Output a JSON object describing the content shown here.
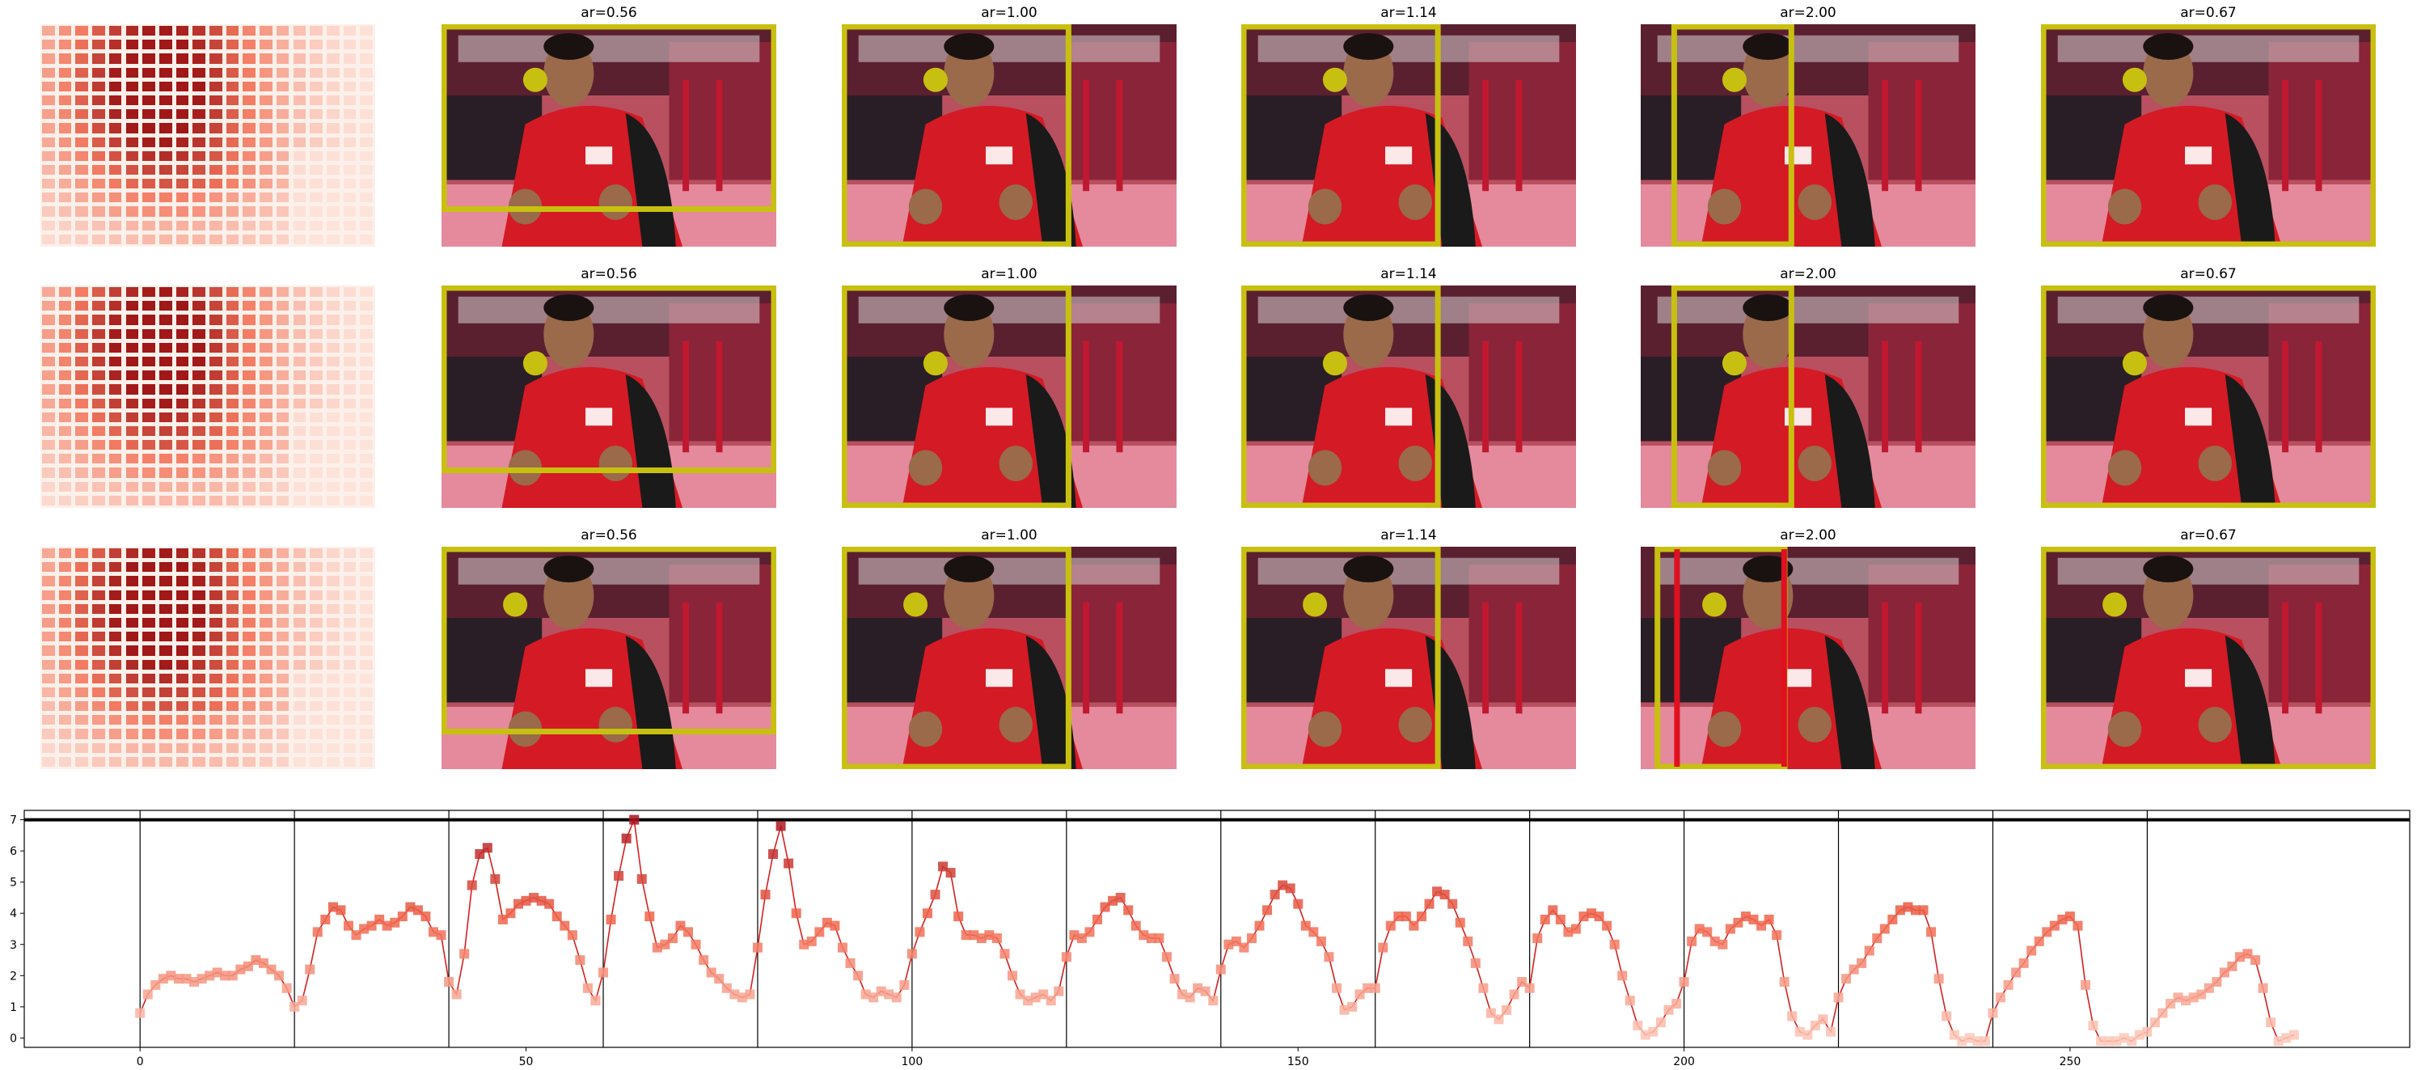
{
  "panels": {
    "rows": [
      {
        "row": 1,
        "cells": [
          {
            "label": "ar=0.56",
            "crop_aspect": 0.56
          },
          {
            "label": "ar=1.00",
            "crop_aspect": 1.0
          },
          {
            "label": "ar=1.14",
            "crop_aspect": 1.14
          },
          {
            "label": "ar=2.00",
            "crop_aspect": 2.0
          },
          {
            "label": "ar=0.67",
            "crop_aspect": 0.67
          }
        ]
      },
      {
        "row": 2,
        "cells": [
          {
            "label": "ar=0.56",
            "crop_aspect": 0.56
          },
          {
            "label": "ar=1.00",
            "crop_aspect": 1.0
          },
          {
            "label": "ar=1.14",
            "crop_aspect": 1.14
          },
          {
            "label": "ar=2.00",
            "crop_aspect": 2.0
          },
          {
            "label": "ar=0.67",
            "crop_aspect": 0.67
          }
        ]
      },
      {
        "row": 3,
        "cells": [
          {
            "label": "ar=0.56",
            "crop_aspect": 0.56
          },
          {
            "label": "ar=1.00",
            "crop_aspect": 1.0
          },
          {
            "label": "ar=1.14",
            "crop_aspect": 1.14
          },
          {
            "label": "ar=2.00",
            "crop_aspect": 2.0
          },
          {
            "label": "ar=0.67",
            "crop_aspect": 0.67
          }
        ]
      }
    ],
    "colors": {
      "crop_box": "#c8c010",
      "focus_dot": "#c8c010",
      "alt_box": "#e01020",
      "heat_low": "#fde5dc",
      "heat_high": "#a01818"
    }
  },
  "chart_data": {
    "type": "line",
    "title": "",
    "xlabel": "",
    "ylabel": "",
    "xlim": [
      -15,
      294
    ],
    "ylim": [
      -0.3,
      7.3
    ],
    "xticks": [
      "0",
      "50",
      "100",
      "150",
      "200",
      "250"
    ],
    "yticks": [
      "0",
      "1",
      "2",
      "3",
      "4",
      "5",
      "6",
      "7"
    ],
    "threshold": 7.0,
    "segment_boundaries": [
      0,
      20,
      40,
      60,
      80,
      100,
      120,
      140,
      160,
      180,
      200,
      220,
      240,
      260
    ],
    "line_color": "#d62020",
    "grid": false,
    "series": [
      {
        "values": [
          0.8,
          1.4,
          1.7,
          1.9,
          2.0,
          1.9,
          1.9,
          1.8,
          1.9,
          2.0,
          2.1,
          2.0,
          2.0,
          2.2,
          2.3,
          2.5,
          2.4,
          2.2,
          2.0,
          1.6,
          1.0,
          1.2,
          2.2,
          3.4,
          3.8,
          4.2,
          4.1,
          3.6,
          3.3,
          3.5,
          3.6,
          3.8,
          3.6,
          3.7,
          3.9,
          4.2,
          4.1,
          3.9,
          3.4,
          3.3,
          1.8,
          1.4,
          2.7,
          4.9,
          5.9,
          6.1,
          5.1,
          3.8,
          4.0,
          4.3,
          4.4,
          4.5,
          4.4,
          4.3,
          3.9,
          3.6,
          3.3,
          2.5,
          1.6,
          1.2,
          2.1,
          3.8,
          5.2,
          6.4,
          7.0,
          5.1,
          3.9,
          2.9,
          3.0,
          3.2,
          3.6,
          3.4,
          3.0,
          2.5,
          2.1,
          1.9,
          1.6,
          1.4,
          1.3,
          1.4,
          2.9,
          4.6,
          5.9,
          6.8,
          5.6,
          4.0,
          3.0,
          3.1,
          3.4,
          3.7,
          3.6,
          2.9,
          2.4,
          2.0,
          1.4,
          1.3,
          1.5,
          1.4,
          1.3,
          1.7,
          2.7,
          3.4,
          4.0,
          4.6,
          5.5,
          5.3,
          3.9,
          3.3,
          3.3,
          3.2,
          3.3,
          3.2,
          2.7,
          2.0,
          1.4,
          1.2,
          1.3,
          1.4,
          1.2,
          1.5,
          2.6,
          3.3,
          3.2,
          3.4,
          3.8,
          4.2,
          4.4,
          4.5,
          4.1,
          3.6,
          3.3,
          3.2,
          3.2,
          2.6,
          1.9,
          1.4,
          1.3,
          1.6,
          1.5,
          1.2,
          2.2,
          3.0,
          3.1,
          2.9,
          3.2,
          3.6,
          4.1,
          4.6,
          4.9,
          4.8,
          4.3,
          3.6,
          3.4,
          3.1,
          2.6,
          1.6,
          0.9,
          1.0,
          1.4,
          1.6,
          1.6,
          2.9,
          3.6,
          3.9,
          3.9,
          3.6,
          3.9,
          4.3,
          4.7,
          4.6,
          4.3,
          3.7,
          3.1,
          2.4,
          1.6,
          0.8,
          0.6,
          0.9,
          1.4,
          1.8,
          1.6,
          3.2,
          3.8,
          4.1,
          3.8,
          3.4,
          3.5,
          3.9,
          4.0,
          3.9,
          3.6,
          3.0,
          2.0,
          1.2,
          0.4,
          0.1,
          0.2,
          0.5,
          0.9,
          1.1,
          1.8,
          3.1,
          3.5,
          3.4,
          3.1,
          3.0,
          3.5,
          3.7,
          3.9,
          3.8,
          3.6,
          3.8,
          3.3,
          1.8,
          0.7,
          0.2,
          0.1,
          0.4,
          0.6,
          0.2,
          1.3,
          1.9,
          2.2,
          2.4,
          2.8,
          3.2,
          3.5,
          3.8,
          4.1,
          4.2,
          4.1,
          4.1,
          3.4,
          1.9,
          0.7,
          0.1,
          -0.1,
          0.0,
          -0.1,
          -0.1,
          0.8,
          1.3,
          1.7,
          2.1,
          2.4,
          2.8,
          3.1,
          3.4,
          3.6,
          3.8,
          3.9,
          3.6,
          1.7,
          0.4,
          -0.1,
          -0.1,
          -0.1,
          0.0,
          -0.1,
          0.1,
          0.2,
          0.5,
          0.8,
          1.1,
          1.3,
          1.2,
          1.3,
          1.4,
          1.6,
          1.8,
          2.1,
          2.3,
          2.6,
          2.7,
          2.5,
          1.6,
          0.5,
          -0.1,
          0.0,
          0.1
        ]
      }
    ]
  }
}
